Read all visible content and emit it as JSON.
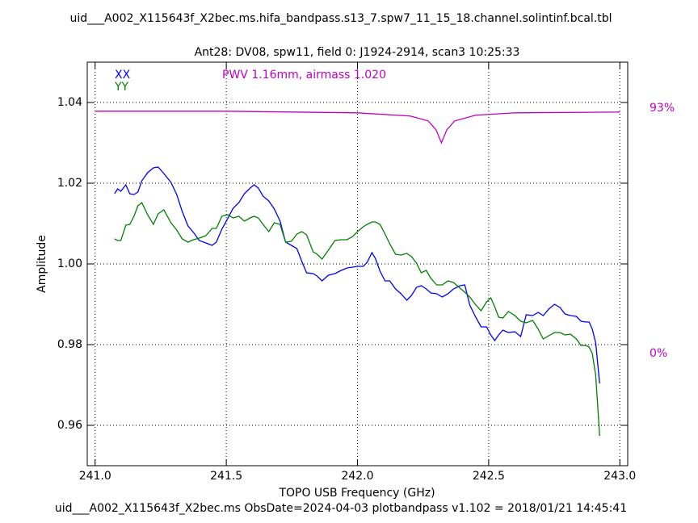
{
  "chart_data": {
    "type": "line",
    "title": "uid___A002_X115643f_X2bec.ms.hifa_bandpass.s13_7.spw7_11_15_18.channel.solintinf.bcal.tbl",
    "subtitle": "Ant28: DV08,  spw11,  field 0: J1924-2914,  scan3  10:25:33",
    "annotation": "PWV 1.16mm, airmass 1.020",
    "footer": "uid___A002_X115643f_X2bec.ms  ObsDate=2024-04-03   plotbandpass v1.102 = 2018/01/21 14:45:41",
    "xlabel": "TOPO USB Frequency (GHz)",
    "ylabel": "Amplitude",
    "xlim": [
      240.97,
      243.03
    ],
    "ylim": [
      0.95,
      1.05
    ],
    "y2lim": [
      -42.5,
      110.4
    ],
    "xticks": [
      {
        "value": 241,
        "label": "241.0"
      },
      241.5,
      {
        "value": 242,
        "label": "242.0"
      },
      242.5,
      {
        "value": 243,
        "label": "243.0"
      }
    ],
    "yticks": [
      0.96,
      0.98,
      {
        "value": 1,
        "label": "1.00"
      },
      1.02,
      1.04
    ],
    "y2ticks": [
      {
        "value": 0,
        "label": "0%"
      },
      {
        "value": 93,
        "label": "93%"
      }
    ],
    "grid": true,
    "annotation_color": "#bf00bf",
    "x": [
      241.074,
      241.086,
      241.098,
      241.117,
      241.132,
      241.148,
      241.163,
      241.178,
      241.2,
      241.222,
      241.24,
      241.262,
      241.289,
      241.311,
      241.332,
      241.354,
      241.375,
      241.397,
      241.422,
      241.446,
      241.462,
      241.483,
      241.505,
      241.526,
      241.548,
      241.569,
      241.591,
      241.606,
      241.622,
      241.64,
      241.662,
      241.683,
      241.705,
      241.726,
      241.748,
      241.769,
      241.788,
      241.806,
      241.831,
      241.846,
      241.865,
      241.889,
      241.914,
      241.938,
      241.96,
      241.982,
      242.0,
      242.022,
      242.037,
      242.055,
      242.068,
      242.086,
      242.105,
      242.123,
      242.145,
      242.166,
      242.188,
      242.206,
      242.225,
      242.243,
      242.262,
      242.28,
      242.302,
      242.323,
      242.345,
      242.366,
      242.391,
      242.409,
      242.428,
      242.449,
      242.471,
      242.492,
      242.508,
      242.523,
      242.538,
      242.554,
      242.575,
      242.6,
      242.622,
      242.643,
      242.668,
      242.689,
      242.708,
      242.729,
      242.751,
      242.772,
      242.791,
      242.812,
      242.834,
      242.852,
      242.871,
      242.883,
      242.895,
      242.908,
      242.923
    ],
    "series": [
      {
        "name": "XX",
        "color": "#0000ff",
        "values": [
          1.0174,
          1.0186,
          1.018,
          1.0196,
          1.0174,
          1.0172,
          1.0178,
          1.0206,
          1.0226,
          1.0238,
          1.024,
          1.0224,
          1.0202,
          1.0172,
          1.013,
          1.0094,
          1.0078,
          1.0058,
          1.0052,
          1.0046,
          1.0054,
          1.0086,
          1.0112,
          1.0138,
          1.0152,
          1.0174,
          1.0188,
          1.0196,
          1.0188,
          1.0168,
          1.0156,
          1.0136,
          1.0106,
          1.0054,
          1.0046,
          1.0038,
          1.0006,
          0.9978,
          0.9976,
          0.997,
          0.9958,
          0.9972,
          0.9976,
          0.9984,
          0.999,
          0.9992,
          0.9994,
          0.9994,
          1.0004,
          1.0028,
          1.0014,
          0.9982,
          0.9958,
          0.9958,
          0.9938,
          0.9926,
          0.991,
          0.9922,
          0.9942,
          0.9946,
          0.9938,
          0.9928,
          0.9926,
          0.9918,
          0.9926,
          0.9938,
          0.9946,
          0.9948,
          0.9898,
          0.987,
          0.9844,
          0.9844,
          0.9824,
          0.981,
          0.9824,
          0.9836,
          0.983,
          0.9832,
          0.982,
          0.9874,
          0.9872,
          0.988,
          0.9872,
          0.9888,
          0.99,
          0.9892,
          0.9876,
          0.9872,
          0.987,
          0.9858,
          0.9856,
          0.9856,
          0.9838,
          0.9804,
          0.9704
        ]
      },
      {
        "name": "YY",
        "color": "#008000",
        "values": [
          1.0062,
          1.0058,
          1.0058,
          1.0096,
          1.0098,
          1.0118,
          1.0144,
          1.0152,
          1.0122,
          1.0098,
          1.0124,
          1.0134,
          1.0102,
          1.0084,
          1.0062,
          1.0054,
          1.006,
          1.0064,
          1.007,
          1.0088,
          1.0088,
          1.0118,
          1.0122,
          1.0114,
          1.0118,
          1.0106,
          1.0114,
          1.0118,
          1.0114,
          1.0098,
          1.008,
          1.0102,
          1.0098,
          1.0054,
          1.0056,
          1.0074,
          1.008,
          1.0072,
          1.003,
          1.0024,
          1.0012,
          1.0034,
          1.0058,
          1.006,
          1.006,
          1.0068,
          1.008,
          1.0092,
          1.0098,
          1.0104,
          1.0104,
          1.0098,
          1.0074,
          1.005,
          1.0024,
          1.0022,
          1.0026,
          1.0018,
          1.0002,
          0.9978,
          0.9984,
          0.9964,
          0.9948,
          0.9948,
          0.9958,
          0.9954,
          0.994,
          0.993,
          0.9918,
          0.99,
          0.9884,
          0.9906,
          0.9916,
          0.9894,
          0.9868,
          0.9866,
          0.9882,
          0.9872,
          0.9858,
          0.9854,
          0.986,
          0.9838,
          0.9814,
          0.9822,
          0.983,
          0.983,
          0.9824,
          0.9826,
          0.9814,
          0.9798,
          0.9798,
          0.9794,
          0.9778,
          0.9724,
          0.9574
        ]
      },
      {
        "color": "#bf00bf",
        "axis": "y2",
        "x": [
          241.0,
          241.5,
          242.0,
          242.2,
          242.27,
          242.3,
          242.32,
          242.34,
          242.37,
          242.45,
          242.6,
          243.0
        ],
        "values": [
          91.8,
          91.8,
          91.2,
          90.0,
          88.1,
          84.7,
          79.8,
          84.7,
          88.1,
          90.3,
          91.2,
          91.5
        ]
      }
    ]
  }
}
